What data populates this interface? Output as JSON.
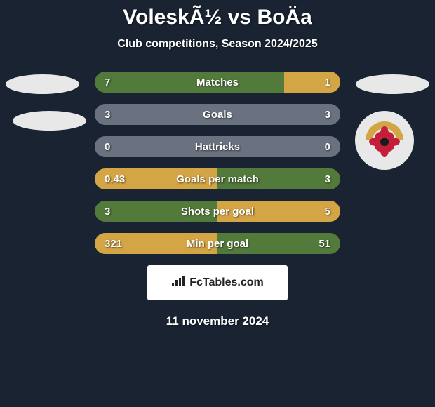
{
  "title": "VoleskÃ½ vs BoÄa",
  "subtitle": "Club competitions, Season 2024/2025",
  "date": "11 november 2024",
  "fctables_label": "FcTables.com",
  "colors": {
    "background": "#1a2332",
    "left_bar": "#527a3a",
    "right_bar": "#d4a544",
    "neutral_bar": "#6a7280",
    "ellipse": "#e8e8e8"
  },
  "stats": [
    {
      "label": "Matches",
      "left_value": "7",
      "right_value": "1",
      "left_width_pct": 77,
      "right_width_pct": 23,
      "left_color": "#527a3a",
      "right_color": "#d4a544"
    },
    {
      "label": "Goals",
      "left_value": "3",
      "right_value": "3",
      "left_width_pct": 50,
      "right_width_pct": 50,
      "left_color": "#6a7280",
      "right_color": "#6a7280"
    },
    {
      "label": "Hattricks",
      "left_value": "0",
      "right_value": "0",
      "left_width_pct": 50,
      "right_width_pct": 50,
      "left_color": "#6a7280",
      "right_color": "#6a7280"
    },
    {
      "label": "Goals per match",
      "left_value": "0.43",
      "right_value": "3",
      "left_width_pct": 50,
      "right_width_pct": 50,
      "left_color": "#d4a544",
      "right_color": "#527a3a"
    },
    {
      "label": "Shots per goal",
      "left_value": "3",
      "right_value": "5",
      "left_width_pct": 50,
      "right_width_pct": 50,
      "left_color": "#527a3a",
      "right_color": "#d4a544"
    },
    {
      "label": "Min per goal",
      "left_value": "321",
      "right_value": "51",
      "left_width_pct": 50,
      "right_width_pct": 50,
      "left_color": "#d4a544",
      "right_color": "#527a3a"
    }
  ],
  "badge": {
    "band_text": "MFK RUŽOMBEROK",
    "band_color": "#d4a544",
    "petal_color": "#c41e3a",
    "center_color": "#1a1a1a"
  }
}
